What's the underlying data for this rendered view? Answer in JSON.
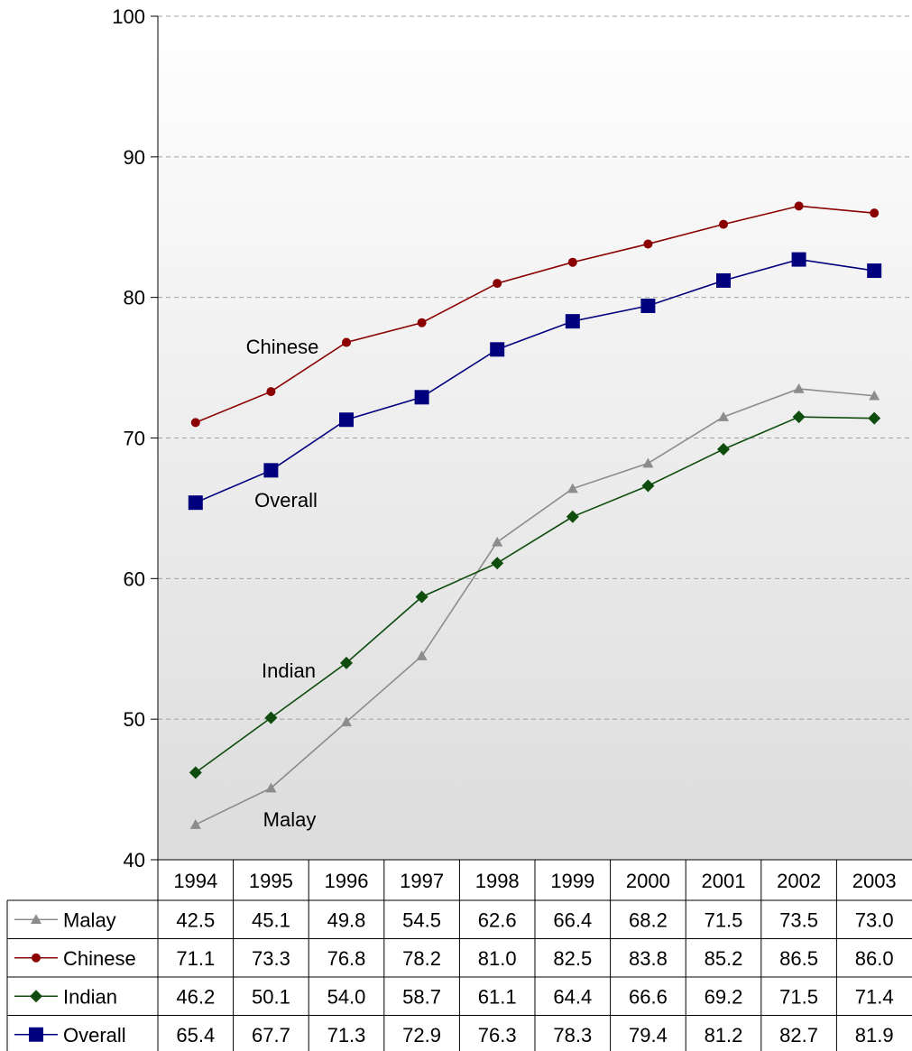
{
  "chart_data": {
    "type": "line",
    "categories": [
      "1994",
      "1995",
      "1996",
      "1997",
      "1998",
      "1999",
      "2000",
      "2001",
      "2002",
      "2003"
    ],
    "ylim": [
      40,
      100
    ],
    "yticks": [
      40,
      50,
      60,
      70,
      80,
      90,
      100
    ],
    "grid": true,
    "legend": "data-table",
    "series": [
      {
        "key": "malay",
        "name": "Malay",
        "label": "Malay",
        "color": "#8c8c8c",
        "marker": "triangle",
        "values": [
          42.5,
          45.1,
          49.8,
          54.5,
          62.6,
          66.4,
          68.2,
          71.5,
          73.5,
          73.0
        ],
        "display": [
          "42.5",
          "45.1",
          "49.8",
          "54.5",
          "62.6",
          "66.4",
          "68.2",
          "71.5",
          "73.5",
          "73.0"
        ]
      },
      {
        "key": "chinese",
        "name": "Chinese",
        "label": "Chinese",
        "color": "#8b0000",
        "marker": "circle",
        "values": [
          71.1,
          73.3,
          76.8,
          78.2,
          81.0,
          82.5,
          83.8,
          85.2,
          86.5,
          86.0
        ],
        "display": [
          "71.1",
          "73.3",
          "76.8",
          "78.2",
          "81.0",
          "82.5",
          "83.8",
          "85.2",
          "86.5",
          "86.0"
        ]
      },
      {
        "key": "indian",
        "name": "Indian",
        "label": "Indian",
        "color": "#0f4d0f",
        "marker": "diamond",
        "values": [
          46.2,
          50.1,
          54.0,
          58.7,
          61.1,
          64.4,
          66.6,
          69.2,
          71.5,
          71.4
        ],
        "display": [
          "46.2",
          "50.1",
          "54.0",
          "58.7",
          "61.1",
          "64.4",
          "66.6",
          "69.2",
          "71.5",
          "71.4"
        ]
      },
      {
        "key": "overall",
        "name": "Overall",
        "label": "Overall",
        "color": "#00007f",
        "marker": "square",
        "values": [
          65.4,
          67.7,
          71.3,
          72.9,
          76.3,
          78.3,
          79.4,
          81.2,
          82.7,
          81.9
        ],
        "display": [
          "65.4",
          "67.7",
          "71.3",
          "72.9",
          "76.3",
          "78.3",
          "79.4",
          "81.2",
          "82.7",
          "81.9"
        ]
      }
    ]
  }
}
